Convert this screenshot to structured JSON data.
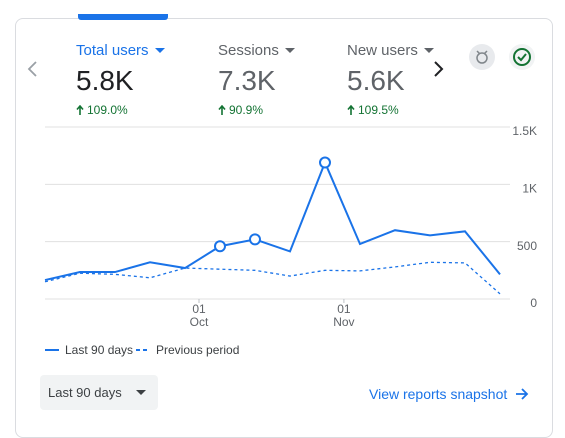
{
  "metrics": [
    {
      "label": "Total users",
      "value": "5.8K",
      "change": "109.0%",
      "selected": true
    },
    {
      "label": "Sessions",
      "value": "7.3K",
      "change": "90.9%",
      "selected": false
    },
    {
      "label": "New users",
      "value": "5.6K",
      "change": "109.5%",
      "selected": false
    }
  ],
  "chart_data": {
    "type": "line",
    "categories": [
      null,
      null,
      null,
      null,
      null,
      null,
      null,
      null,
      null,
      null,
      null,
      null,
      null,
      null
    ],
    "xlim": [
      0,
      13
    ],
    "xticks": [
      {
        "value": 4.4,
        "label": "01 Oct"
      },
      {
        "value": 8.54,
        "label": "01 Nov"
      }
    ],
    "series": [
      {
        "name": "Last 90 days",
        "color": "#1a73e8",
        "dashed": false,
        "markers": [
          5,
          6,
          8
        ],
        "values": [
          165,
          235,
          235,
          320,
          270,
          460,
          520,
          415,
          1190,
          480,
          600,
          555,
          590,
          215
        ]
      },
      {
        "name": "Previous period",
        "color": "#1a73e8",
        "dashed": true,
        "values": [
          150,
          225,
          215,
          185,
          270,
          260,
          250,
          200,
          250,
          245,
          280,
          320,
          315,
          45
        ]
      }
    ],
    "ylim": [
      0,
      1500
    ],
    "yticks": [
      0,
      500,
      {
        "value": 1000,
        "label": "1K"
      },
      {
        "value": 1500,
        "label": "1.5K"
      }
    ],
    "grid": true
  },
  "footer": {
    "range": "Last 90 days",
    "link": "View reports snapshot"
  }
}
